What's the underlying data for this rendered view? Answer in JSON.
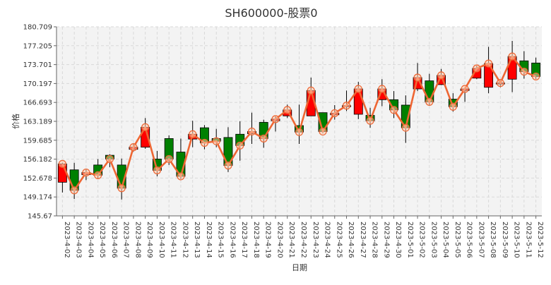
{
  "chart_data": {
    "type": "candlestick",
    "title": "SH600000-股票0",
    "xlabel": "日期",
    "ylabel": "价格",
    "ylim": [
      145.67,
      180.709
    ],
    "yticks": [
      "145.67",
      "149.174",
      "152.678",
      "156.182",
      "159.685",
      "163.189",
      "166.693",
      "170.197",
      "173.701",
      "177.205",
      "180.709"
    ],
    "grid": true,
    "up_color": "#ff0000",
    "down_color": "#008000",
    "line_color": "#ee6633",
    "categories": [
      "2023-4-02",
      "2023-4-03",
      "2023-4-04",
      "2023-4-05",
      "2023-4-06",
      "2023-4-07",
      "2023-4-08",
      "2023-4-09",
      "2023-4-10",
      "2023-4-11",
      "2023-4-12",
      "2023-4-13",
      "2023-4-14",
      "2023-4-15",
      "2023-4-16",
      "2023-4-17",
      "2023-4-18",
      "2023-4-19",
      "2023-4-20",
      "2023-4-21",
      "2023-4-22",
      "2023-4-23",
      "2023-4-24",
      "2023-4-25",
      "2023-4-26",
      "2023-4-27",
      "2023-4-28",
      "2023-4-29",
      "2023-4-30",
      "2023-5-01",
      "2023-5-02",
      "2023-5-03",
      "2023-5-04",
      "2023-5-05",
      "2023-5-06",
      "2023-5-07",
      "2023-5-08",
      "2023-5-09",
      "2023-5-10",
      "2023-5-11",
      "2023-5-12"
    ],
    "open": [
      151.9,
      154.2,
      153.3,
      155.1,
      156.9,
      155.1,
      158.0,
      158.4,
      156.2,
      160.0,
      157.5,
      159.9,
      162.0,
      160.0,
      160.2,
      160.8,
      160.9,
      163.0,
      163.3,
      164.2,
      162.4,
      164.2,
      164.8,
      164.4,
      165.9,
      164.5,
      164.3,
      167.2,
      167.2,
      166.2,
      169.2,
      170.7,
      170.0,
      167.3,
      168.9,
      171.2,
      169.5,
      170.2,
      171.0,
      174.4,
      174.0
    ],
    "close": [
      155.3,
      150.4,
      153.7,
      153.2,
      156.2,
      150.8,
      158.4,
      162.1,
      154.1,
      156.2,
      153.0,
      160.8,
      159.2,
      159.5,
      155.0,
      158.7,
      161.3,
      160.0,
      163.6,
      165.3,
      161.2,
      168.9,
      161.3,
      164.7,
      166.1,
      169.2,
      163.3,
      169.2,
      165.3,
      162.0,
      171.3,
      166.8,
      171.7,
      165.9,
      169.2,
      173.0,
      173.9,
      170.3,
      175.2,
      172.4,
      171.5
    ],
    "high": [
      155.5,
      155.5,
      154.4,
      156.2,
      157.1,
      156.3,
      159.0,
      163.8,
      157.7,
      160.6,
      160.0,
      163.3,
      162.5,
      161.8,
      162.1,
      163.2,
      164.8,
      163.5,
      164.1,
      166.3,
      166.3,
      171.3,
      164.8,
      166.2,
      168.9,
      170.5,
      165.7,
      171.0,
      168.8,
      168.0,
      174.0,
      172.0,
      172.9,
      168.4,
      169.5,
      173.5,
      177.0,
      170.8,
      178.1,
      176.2,
      175.0
    ],
    "low": [
      150.0,
      148.8,
      152.3,
      152.5,
      154.7,
      148.7,
      157.6,
      158.1,
      153.0,
      155.1,
      152.5,
      158.4,
      158.0,
      158.4,
      153.8,
      155.9,
      159.0,
      158.3,
      161.3,
      163.8,
      159.0,
      164.2,
      161.0,
      163.5,
      165.1,
      163.6,
      162.0,
      166.0,
      163.8,
      159.2,
      168.8,
      166.1,
      169.9,
      165.0,
      166.8,
      171.0,
      168.4,
      169.5,
      168.6,
      171.1,
      171.0
    ]
  }
}
